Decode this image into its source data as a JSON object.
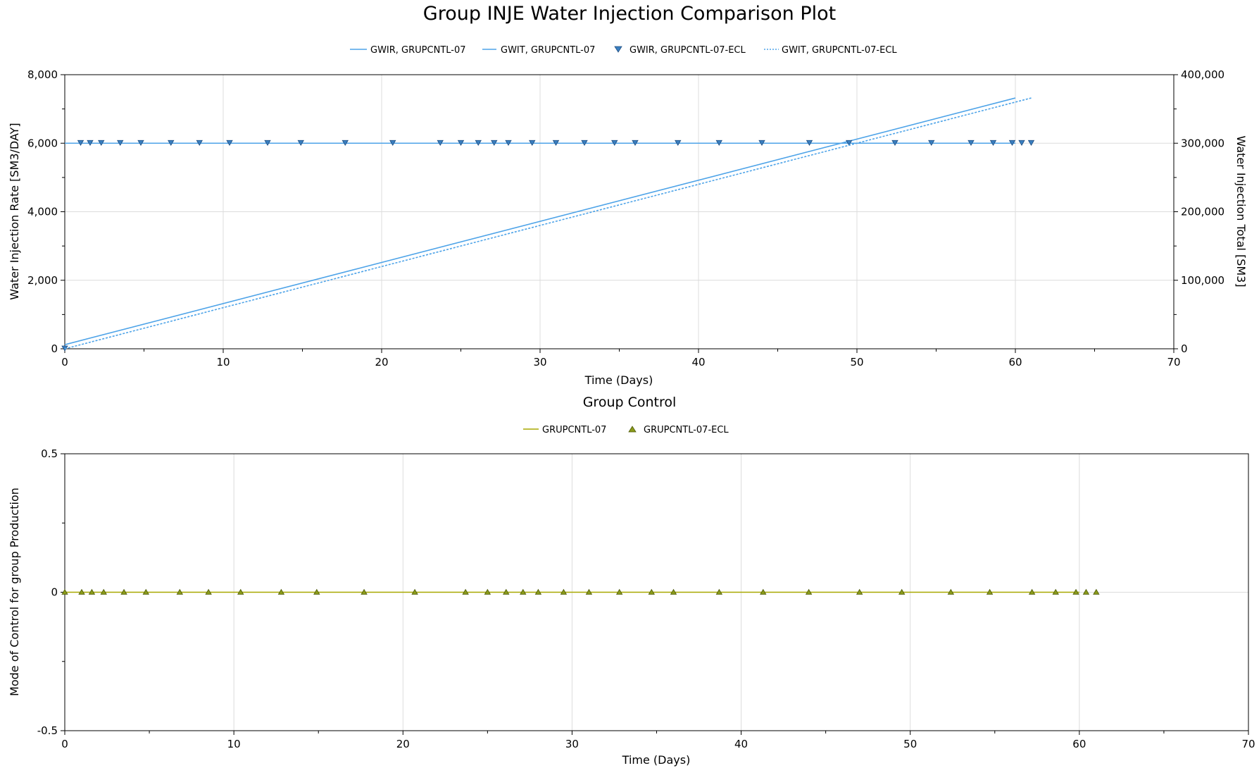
{
  "page_title": "Group INJE Water Injection Comparison Plot",
  "chart_data": [
    {
      "type": "line",
      "title": "Group INJE Water Injection Comparison Plot",
      "xlabel": "Time (Days)",
      "ylabel": "Water Injection Rate [SM3/DAY]",
      "y2label": "Water Injection Total [SM3]",
      "xlim": [
        0,
        70
      ],
      "ylim": [
        0,
        8000
      ],
      "y2lim": [
        0,
        400000
      ],
      "x_ticks": [
        "0",
        "10",
        "20",
        "30",
        "40",
        "50",
        "60",
        "70"
      ],
      "y_ticks": [
        "0",
        "2,000",
        "4,000",
        "6,000",
        "8,000"
      ],
      "y2_ticks": [
        "0",
        "100,000",
        "200,000",
        "300,000",
        "400,000"
      ],
      "grid": true,
      "legend_position": "top-center",
      "colors": {
        "blue": "#4da3e8",
        "marker": "#3a7fc0",
        "grid": "#dcdcdc"
      },
      "series": [
        {
          "name": "GWIR, GRUPCNTL-07",
          "axis": "left",
          "style": "solid",
          "x": [
            0,
            60
          ],
          "y": [
            6000,
            6000
          ]
        },
        {
          "name": "GWIT, GRUPCNTL-07",
          "axis": "right",
          "style": "solid",
          "x": [
            0,
            60
          ],
          "y": [
            6000,
            366000
          ]
        },
        {
          "name": "GWIR, GRUPCNTL-07-ECL",
          "axis": "left",
          "style": "marker-down",
          "x": [
            0,
            1,
            1.6,
            2.3,
            3.5,
            4.8,
            6.7,
            8.5,
            10.4,
            12.8,
            14.9,
            17.7,
            20.7,
            23.7,
            25,
            26.1,
            27.1,
            28,
            29.5,
            31,
            32.8,
            34.7,
            36,
            38.7,
            41.3,
            44,
            47,
            49.5,
            52.4,
            54.7,
            57.2,
            58.6,
            59.8,
            60.4,
            61
          ],
          "y": [
            0,
            6000,
            6000,
            6000,
            6000,
            6000,
            6000,
            6000,
            6000,
            6000,
            6000,
            6000,
            6000,
            6000,
            6000,
            6000,
            6000,
            6000,
            6000,
            6000,
            6000,
            6000,
            6000,
            6000,
            6000,
            6000,
            6000,
            6000,
            6000,
            6000,
            6000,
            6000,
            6000,
            6000,
            6000
          ]
        },
        {
          "name": "GWIT, GRUPCNTL-07-ECL",
          "axis": "right",
          "style": "dotted",
          "x": [
            0,
            61
          ],
          "y": [
            0,
            366000
          ]
        }
      ]
    },
    {
      "type": "line",
      "title": "Group Control",
      "xlabel": "Time (Days)",
      "ylabel": "Mode of Control for group Production",
      "xlim": [
        0,
        70
      ],
      "ylim": [
        -0.5,
        0.5
      ],
      "x_ticks": [
        "0",
        "10",
        "20",
        "30",
        "40",
        "50",
        "60",
        "70"
      ],
      "y_ticks": [
        "-0.5",
        "0",
        "0.5"
      ],
      "grid": true,
      "legend_position": "top-center",
      "colors": {
        "olive": "#a8a800",
        "marker": "#8a9a1a"
      },
      "series": [
        {
          "name": "GRUPCNTL-07",
          "style": "solid",
          "x": [
            0,
            60
          ],
          "y": [
            0,
            0
          ]
        },
        {
          "name": "GRUPCNTL-07-ECL",
          "style": "marker-up",
          "x": [
            0,
            1,
            1.6,
            2.3,
            3.5,
            4.8,
            6.8,
            8.5,
            10.4,
            12.8,
            14.9,
            17.7,
            20.7,
            23.7,
            25,
            26.1,
            27.1,
            28,
            29.5,
            31,
            32.8,
            34.7,
            36,
            38.7,
            41.3,
            44,
            47,
            49.5,
            52.4,
            54.7,
            57.2,
            58.6,
            59.8,
            60.4,
            61
          ],
          "y": [
            0,
            0,
            0,
            0,
            0,
            0,
            0,
            0,
            0,
            0,
            0,
            0,
            0,
            0,
            0,
            0,
            0,
            0,
            0,
            0,
            0,
            0,
            0,
            0,
            0,
            0,
            0,
            0,
            0,
            0,
            0,
            0,
            0,
            0,
            0
          ]
        }
      ]
    }
  ]
}
